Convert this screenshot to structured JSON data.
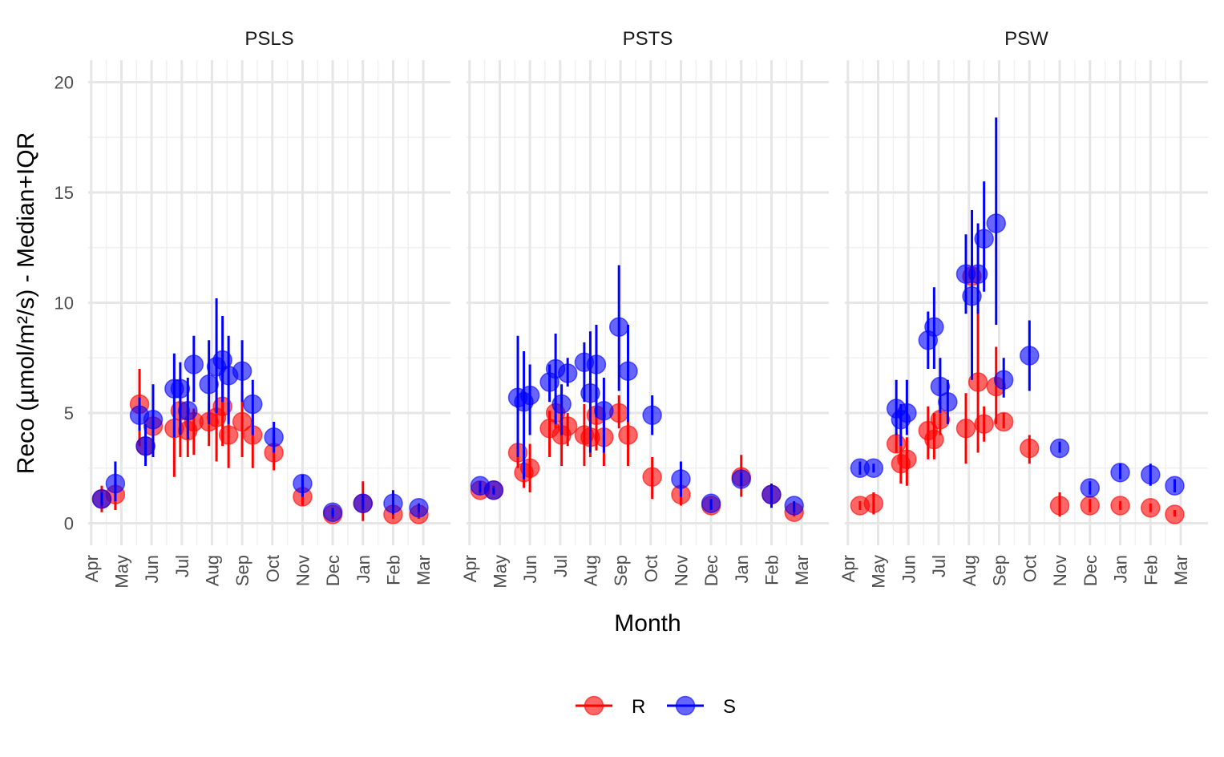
{
  "chart_data": {
    "type": "scatter",
    "title": "",
    "xlabel": "Month",
    "ylabel": "Reco (µmol/m²/s) - Median+IQR",
    "ylim": [
      -1,
      21
    ],
    "yticks": [
      0,
      5,
      10,
      15,
      20
    ],
    "x_domain": [
      -0.1,
      11.9
    ],
    "x_unit": "months from 1 Apr",
    "xtick_labels": [
      "Apr",
      "May",
      "Jun",
      "Jul",
      "Aug",
      "Sep",
      "Oct",
      "Nov",
      "Dec",
      "Jan",
      "Feb",
      "Mar"
    ],
    "legend": {
      "position": "bottom",
      "entries": [
        {
          "name": "R",
          "color": "#ff0000"
        },
        {
          "name": "S",
          "color": "#0000ff"
        }
      ]
    },
    "grid": true,
    "panels": [
      {
        "name": "PSLS",
        "series": [
          {
            "name": "R",
            "color": "#ff0000",
            "points": [
              {
                "x": 0.35,
                "y": 1.1,
                "lo": 0.5,
                "hi": 1.7
              },
              {
                "x": 0.8,
                "y": 1.3,
                "lo": 0.6,
                "hi": 2.0
              },
              {
                "x": 1.6,
                "y": 5.4,
                "lo": 3.5,
                "hi": 7.0
              },
              {
                "x": 1.8,
                "y": 3.5,
                "lo": 3.0,
                "hi": 4.0
              },
              {
                "x": 2.05,
                "y": 4.4,
                "lo": 3.5,
                "hi": 5.0
              },
              {
                "x": 2.75,
                "y": 4.3,
                "lo": 2.1,
                "hi": 5.3
              },
              {
                "x": 2.95,
                "y": 5.1,
                "lo": 3.0,
                "hi": 6.5
              },
              {
                "x": 3.2,
                "y": 4.2,
                "lo": 3.0,
                "hi": 5.3
              },
              {
                "x": 3.4,
                "y": 4.6,
                "lo": 3.1,
                "hi": 5.2
              },
              {
                "x": 3.9,
                "y": 4.6,
                "lo": 3.5,
                "hi": 5.5
              },
              {
                "x": 4.15,
                "y": 4.8,
                "lo": 2.8,
                "hi": 6.0
              },
              {
                "x": 4.35,
                "y": 5.3,
                "lo": 3.5,
                "hi": 6.5
              },
              {
                "x": 4.55,
                "y": 4.0,
                "lo": 2.5,
                "hi": 5.5
              },
              {
                "x": 5.0,
                "y": 4.6,
                "lo": 3.0,
                "hi": 6.0
              },
              {
                "x": 5.35,
                "y": 4.0,
                "lo": 2.5,
                "hi": 5.0
              },
              {
                "x": 6.05,
                "y": 3.2,
                "lo": 2.4,
                "hi": 3.9
              },
              {
                "x": 7.0,
                "y": 1.2,
                "lo": 0.8,
                "hi": 1.6
              },
              {
                "x": 8.0,
                "y": 0.4,
                "lo": 0.2,
                "hi": 0.6
              },
              {
                "x": 9.0,
                "y": 0.9,
                "lo": 0.1,
                "hi": 1.9
              },
              {
                "x": 10.0,
                "y": 0.4,
                "lo": 0.2,
                "hi": 0.5
              },
              {
                "x": 10.85,
                "y": 0.4,
                "lo": 0.2,
                "hi": 0.6
              }
            ]
          },
          {
            "name": "S",
            "color": "#0000ff",
            "points": [
              {
                "x": 0.35,
                "y": 1.1,
                "lo": 0.8,
                "hi": 1.4
              },
              {
                "x": 0.8,
                "y": 1.8,
                "lo": 1.0,
                "hi": 2.8
              },
              {
                "x": 1.6,
                "y": 4.9,
                "lo": 4.2,
                "hi": 5.7
              },
              {
                "x": 1.8,
                "y": 3.5,
                "lo": 2.6,
                "hi": 4.5
              },
              {
                "x": 2.05,
                "y": 4.7,
                "lo": 3.0,
                "hi": 6.3
              },
              {
                "x": 2.75,
                "y": 6.1,
                "lo": 3.9,
                "hi": 7.7
              },
              {
                "x": 2.95,
                "y": 6.1,
                "lo": 4.0,
                "hi": 7.3
              },
              {
                "x": 3.2,
                "y": 5.1,
                "lo": 3.8,
                "hi": 6.6
              },
              {
                "x": 3.4,
                "y": 7.2,
                "lo": 5.5,
                "hi": 8.5
              },
              {
                "x": 3.9,
                "y": 6.3,
                "lo": 4.5,
                "hi": 8.3
              },
              {
                "x": 4.15,
                "y": 7.1,
                "lo": 5.0,
                "hi": 10.2
              },
              {
                "x": 4.35,
                "y": 7.4,
                "lo": 5.5,
                "hi": 9.4
              },
              {
                "x": 4.55,
                "y": 6.7,
                "lo": 4.5,
                "hi": 8.5
              },
              {
                "x": 5.0,
                "y": 6.9,
                "lo": 5.5,
                "hi": 8.3
              },
              {
                "x": 5.35,
                "y": 5.4,
                "lo": 4.0,
                "hi": 6.5
              },
              {
                "x": 6.05,
                "y": 3.9,
                "lo": 3.2,
                "hi": 4.6
              },
              {
                "x": 7.0,
                "y": 1.8,
                "lo": 1.2,
                "hi": 2.2
              },
              {
                "x": 8.0,
                "y": 0.5,
                "lo": 0.3,
                "hi": 0.7
              },
              {
                "x": 9.0,
                "y": 0.9,
                "lo": 0.6,
                "hi": 1.3
              },
              {
                "x": 10.0,
                "y": 0.9,
                "lo": 0.4,
                "hi": 1.5
              },
              {
                "x": 10.85,
                "y": 0.7,
                "lo": 0.5,
                "hi": 0.9
              }
            ]
          }
        ]
      },
      {
        "name": "PSTS",
        "series": [
          {
            "name": "R",
            "color": "#ff0000",
            "points": [
              {
                "x": 0.35,
                "y": 1.5,
                "lo": 1.3,
                "hi": 1.8
              },
              {
                "x": 0.8,
                "y": 1.5,
                "lo": 1.3,
                "hi": 1.7
              },
              {
                "x": 1.6,
                "y": 3.2,
                "lo": 2.5,
                "hi": 3.8
              },
              {
                "x": 1.8,
                "y": 2.3,
                "lo": 1.6,
                "hi": 2.9
              },
              {
                "x": 2.0,
                "y": 2.5,
                "lo": 1.4,
                "hi": 3.6
              },
              {
                "x": 2.65,
                "y": 4.3,
                "lo": 3.0,
                "hi": 5.1
              },
              {
                "x": 2.85,
                "y": 5.0,
                "lo": 4.3,
                "hi": 5.8
              },
              {
                "x": 3.05,
                "y": 4.0,
                "lo": 2.6,
                "hi": 5.1
              },
              {
                "x": 3.25,
                "y": 4.4,
                "lo": 3.5,
                "hi": 5.0
              },
              {
                "x": 3.8,
                "y": 4.0,
                "lo": 2.6,
                "hi": 5.4
              },
              {
                "x": 4.0,
                "y": 3.9,
                "lo": 3.0,
                "hi": 4.6
              },
              {
                "x": 4.2,
                "y": 4.9,
                "lo": 3.3,
                "hi": 5.3
              },
              {
                "x": 4.45,
                "y": 3.9,
                "lo": 2.6,
                "hi": 5.1
              },
              {
                "x": 4.95,
                "y": 5.0,
                "lo": 4.3,
                "hi": 5.8
              },
              {
                "x": 5.25,
                "y": 4.0,
                "lo": 2.6,
                "hi": 4.8
              },
              {
                "x": 6.05,
                "y": 2.1,
                "lo": 1.1,
                "hi": 3.0
              },
              {
                "x": 7.0,
                "y": 1.3,
                "lo": 0.8,
                "hi": 1.7
              },
              {
                "x": 8.0,
                "y": 0.8,
                "lo": 0.6,
                "hi": 1.0
              },
              {
                "x": 9.0,
                "y": 2.1,
                "lo": 1.2,
                "hi": 3.1
              },
              {
                "x": 10.0,
                "y": 1.3,
                "lo": 1.0,
                "hi": 1.7
              },
              {
                "x": 10.75,
                "y": 0.5,
                "lo": 0.3,
                "hi": 0.7
              }
            ]
          },
          {
            "name": "S",
            "color": "#0000ff",
            "points": [
              {
                "x": 0.35,
                "y": 1.7,
                "lo": 1.4,
                "hi": 1.9
              },
              {
                "x": 0.8,
                "y": 1.5,
                "lo": 1.3,
                "hi": 1.6
              },
              {
                "x": 1.6,
                "y": 5.7,
                "lo": 3.0,
                "hi": 8.5
              },
              {
                "x": 1.8,
                "y": 5.5,
                "lo": 2.0,
                "hi": 7.8
              },
              {
                "x": 2.0,
                "y": 5.8,
                "lo": 4.0,
                "hi": 7.2
              },
              {
                "x": 2.65,
                "y": 6.4,
                "lo": 5.5,
                "hi": 7.2
              },
              {
                "x": 2.85,
                "y": 7.0,
                "lo": 4.5,
                "hi": 8.6
              },
              {
                "x": 3.05,
                "y": 5.4,
                "lo": 4.0,
                "hi": 6.3
              },
              {
                "x": 3.25,
                "y": 6.8,
                "lo": 6.2,
                "hi": 7.5
              },
              {
                "x": 3.8,
                "y": 7.3,
                "lo": 5.5,
                "hi": 8.2
              },
              {
                "x": 4.0,
                "y": 5.9,
                "lo": 3.2,
                "hi": 8.7
              },
              {
                "x": 4.2,
                "y": 7.2,
                "lo": 4.8,
                "hi": 9.0
              },
              {
                "x": 4.45,
                "y": 5.1,
                "lo": 3.2,
                "hi": 6.6
              },
              {
                "x": 4.95,
                "y": 8.9,
                "lo": 6.0,
                "hi": 11.7
              },
              {
                "x": 5.25,
                "y": 6.9,
                "lo": 4.6,
                "hi": 9.0
              },
              {
                "x": 6.05,
                "y": 4.9,
                "lo": 4.0,
                "hi": 5.8
              },
              {
                "x": 7.0,
                "y": 2.0,
                "lo": 1.2,
                "hi": 2.8
              },
              {
                "x": 8.0,
                "y": 0.9,
                "lo": 0.6,
                "hi": 1.1
              },
              {
                "x": 9.0,
                "y": 2.0,
                "lo": 1.7,
                "hi": 2.3
              },
              {
                "x": 10.0,
                "y": 1.3,
                "lo": 0.7,
                "hi": 1.8
              },
              {
                "x": 10.75,
                "y": 0.8,
                "lo": 0.5,
                "hi": 1.0
              }
            ]
          }
        ]
      },
      {
        "name": "PSW",
        "series": [
          {
            "name": "R",
            "color": "#ff0000",
            "points": [
              {
                "x": 0.4,
                "y": 0.8,
                "lo": 0.6,
                "hi": 1.0
              },
              {
                "x": 0.85,
                "y": 0.9,
                "lo": 0.4,
                "hi": 1.4
              },
              {
                "x": 1.6,
                "y": 3.6,
                "lo": 3.2,
                "hi": 4.1
              },
              {
                "x": 1.75,
                "y": 2.7,
                "lo": 1.8,
                "hi": 3.5
              },
              {
                "x": 1.95,
                "y": 2.9,
                "lo": 1.7,
                "hi": 3.9
              },
              {
                "x": 2.65,
                "y": 4.2,
                "lo": 2.9,
                "hi": 5.3
              },
              {
                "x": 2.85,
                "y": 3.8,
                "lo": 2.9,
                "hi": 5.0
              },
              {
                "x": 3.05,
                "y": 4.7,
                "lo": 4.0,
                "hi": 5.5
              },
              {
                "x": 3.9,
                "y": 4.3,
                "lo": 2.7,
                "hi": 5.9
              },
              {
                "x": 4.1,
                "y": 11.2,
                "lo": 10.5,
                "hi": 12.0
              },
              {
                "x": 4.3,
                "y": 6.4,
                "lo": 3.2,
                "hi": 9.7
              },
              {
                "x": 4.5,
                "y": 4.5,
                "lo": 3.7,
                "hi": 5.3
              },
              {
                "x": 4.9,
                "y": 6.2,
                "lo": 4.5,
                "hi": 8.0
              },
              {
                "x": 5.15,
                "y": 4.6,
                "lo": 4.3,
                "hi": 5.0
              },
              {
                "x": 6.0,
                "y": 3.4,
                "lo": 2.7,
                "hi": 4.0
              },
              {
                "x": 7.0,
                "y": 0.8,
                "lo": 0.3,
                "hi": 1.4
              },
              {
                "x": 8.0,
                "y": 0.8,
                "lo": 0.5,
                "hi": 1.1
              },
              {
                "x": 9.0,
                "y": 0.8,
                "lo": 0.6,
                "hi": 1.0
              },
              {
                "x": 10.0,
                "y": 0.7,
                "lo": 0.5,
                "hi": 0.9
              },
              {
                "x": 10.8,
                "y": 0.4,
                "lo": 0.3,
                "hi": 0.6
              }
            ]
          },
          {
            "name": "S",
            "color": "#0000ff",
            "points": [
              {
                "x": 0.4,
                "y": 2.5,
                "lo": 2.2,
                "hi": 2.8
              },
              {
                "x": 0.85,
                "y": 2.5,
                "lo": 2.3,
                "hi": 2.7
              },
              {
                "x": 1.6,
                "y": 5.2,
                "lo": 4.0,
                "hi": 6.5
              },
              {
                "x": 1.75,
                "y": 4.7,
                "lo": 3.5,
                "hi": 5.4
              },
              {
                "x": 1.95,
                "y": 5.0,
                "lo": 4.0,
                "hi": 6.5
              },
              {
                "x": 2.65,
                "y": 8.3,
                "lo": 7.0,
                "hi": 9.6
              },
              {
                "x": 2.85,
                "y": 8.9,
                "lo": 7.0,
                "hi": 10.7
              },
              {
                "x": 3.05,
                "y": 6.2,
                "lo": 5.0,
                "hi": 7.5
              },
              {
                "x": 3.3,
                "y": 5.5,
                "lo": 4.5,
                "hi": 6.5
              },
              {
                "x": 3.9,
                "y": 11.3,
                "lo": 9.5,
                "hi": 13.1
              },
              {
                "x": 4.1,
                "y": 10.3,
                "lo": 6.5,
                "hi": 14.2
              },
              {
                "x": 4.3,
                "y": 11.3,
                "lo": 9.5,
                "hi": 13.6
              },
              {
                "x": 4.5,
                "y": 12.9,
                "lo": 10.5,
                "hi": 15.5
              },
              {
                "x": 4.9,
                "y": 13.6,
                "lo": 9.0,
                "hi": 18.4
              },
              {
                "x": 5.15,
                "y": 6.5,
                "lo": 5.7,
                "hi": 7.5
              },
              {
                "x": 6.0,
                "y": 7.6,
                "lo": 6.0,
                "hi": 9.2
              },
              {
                "x": 7.0,
                "y": 3.4,
                "lo": 3.2,
                "hi": 3.7
              },
              {
                "x": 8.0,
                "y": 1.6,
                "lo": 1.3,
                "hi": 1.9
              },
              {
                "x": 9.0,
                "y": 2.3,
                "lo": 2.0,
                "hi": 2.7
              },
              {
                "x": 10.0,
                "y": 2.2,
                "lo": 1.7,
                "hi": 2.7
              },
              {
                "x": 10.8,
                "y": 1.7,
                "lo": 1.4,
                "hi": 2.0
              }
            ]
          }
        ]
      }
    ]
  }
}
